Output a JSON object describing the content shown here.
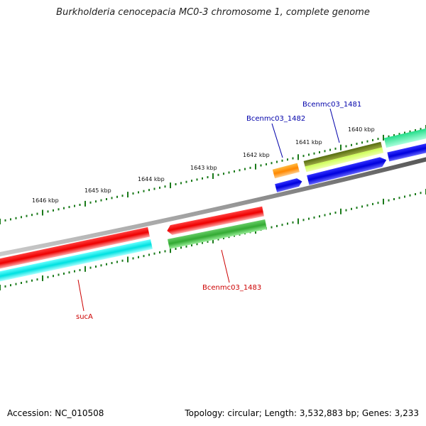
{
  "title": "Burkholderia cenocepacia MC0-3 chromosome 1, complete genome",
  "footer": {
    "accession": "Accession: NC_010508",
    "summary": "Topology: circular; Length: 3,532,883 bp; Genes: 3,233"
  },
  "scale": {
    "ticks": [
      "1646 kbp",
      "1645 kbp",
      "1644 kbp",
      "1643 kbp",
      "1642 kbp",
      "1641 kbp",
      "1640 kbp"
    ]
  },
  "genes": {
    "sucA": {
      "label": "sucA",
      "color": "#cc0000"
    },
    "b1483": {
      "label": "Bcenmc03_1483",
      "color": "#cc0000"
    },
    "b1482": {
      "label": "Bcenmc03_1482",
      "color": "#0000aa"
    },
    "b1481": {
      "label": "Bcenmc03_1481",
      "color": "#0000aa"
    }
  },
  "colors": {
    "backbone": "#808080",
    "tick_mark": "#1a7a1a",
    "red": "#e00000",
    "cyan": "#00e5e5",
    "green": "#33bb33",
    "blue": "#0000ee",
    "orange": "#ff9900",
    "olive": "#7a8a20",
    "lime": "#ccff66",
    "teal": "#33dd99"
  }
}
